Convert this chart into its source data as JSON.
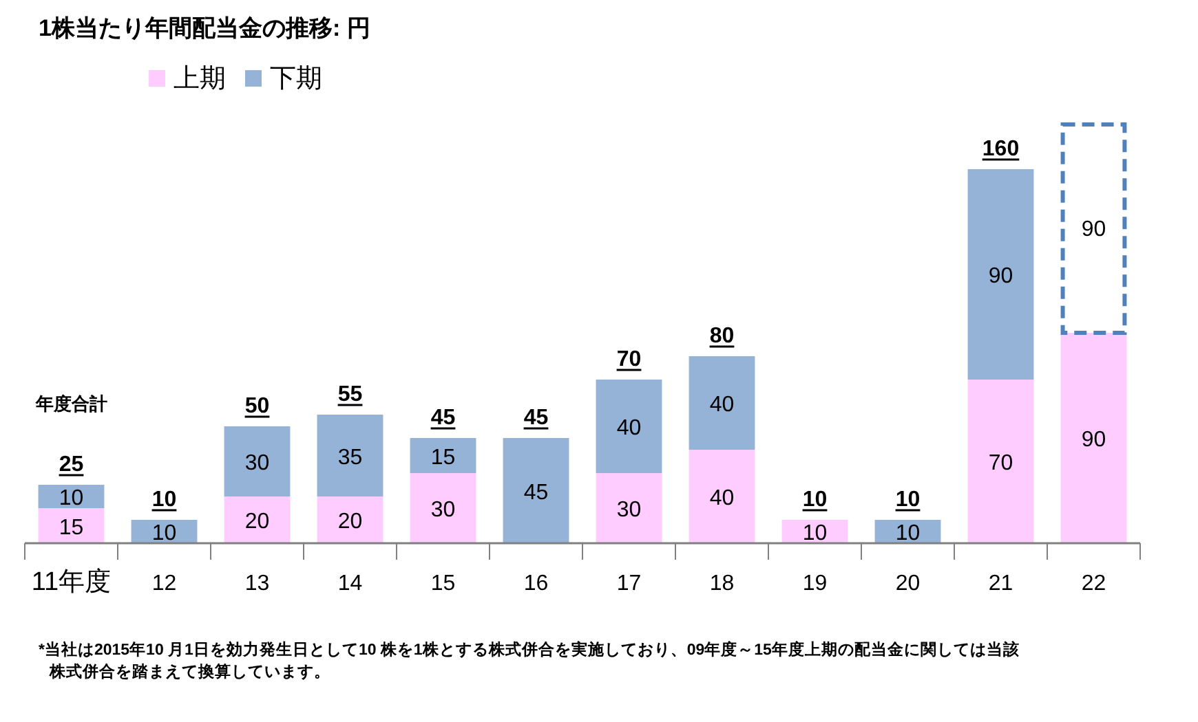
{
  "chart_data": {
    "type": "bar",
    "stacked": true,
    "title": "1株当たり年間配当金の推移: 円",
    "categories": [
      "11年度",
      "12",
      "13",
      "14",
      "15",
      "16",
      "17",
      "18",
      "19",
      "20",
      "21",
      "22"
    ],
    "series": [
      {
        "name": "上期",
        "color": "#ffccff",
        "values": [
          15,
          null,
          20,
          20,
          30,
          null,
          30,
          40,
          10,
          null,
          70,
          90
        ]
      },
      {
        "name": "下期",
        "color": "#95b3d7",
        "colors": [
          "#95b3d7",
          "#95b3d7",
          "#95b3d7",
          "#95b3d7",
          "#95b3d7",
          "#95b3d7",
          "#95b3d7",
          "#95b3d7",
          null,
          "#95b3d7",
          "#95b3d7",
          "#ffffff"
        ],
        "line_style": [
          null,
          null,
          null,
          null,
          null,
          null,
          null,
          null,
          null,
          null,
          null,
          "dashed"
        ],
        "values": [
          10,
          10,
          30,
          35,
          15,
          45,
          40,
          40,
          null,
          10,
          90,
          90
        ]
      }
    ],
    "data_labels": true,
    "totals": [
      "25",
      "10",
      "50",
      "55",
      "45",
      "45",
      "70",
      "80",
      "10",
      "10",
      "160",
      null
    ],
    "legend": "top",
    "annotations": [
      "年度合計",
      "*当社は2015年10 月1日を効力発生日として10 株を1株とする株式併合を実施しており、09年度～15年度上期の配当金に関しては当該株式併合を踏まえて換算しています。"
    ]
  }
}
